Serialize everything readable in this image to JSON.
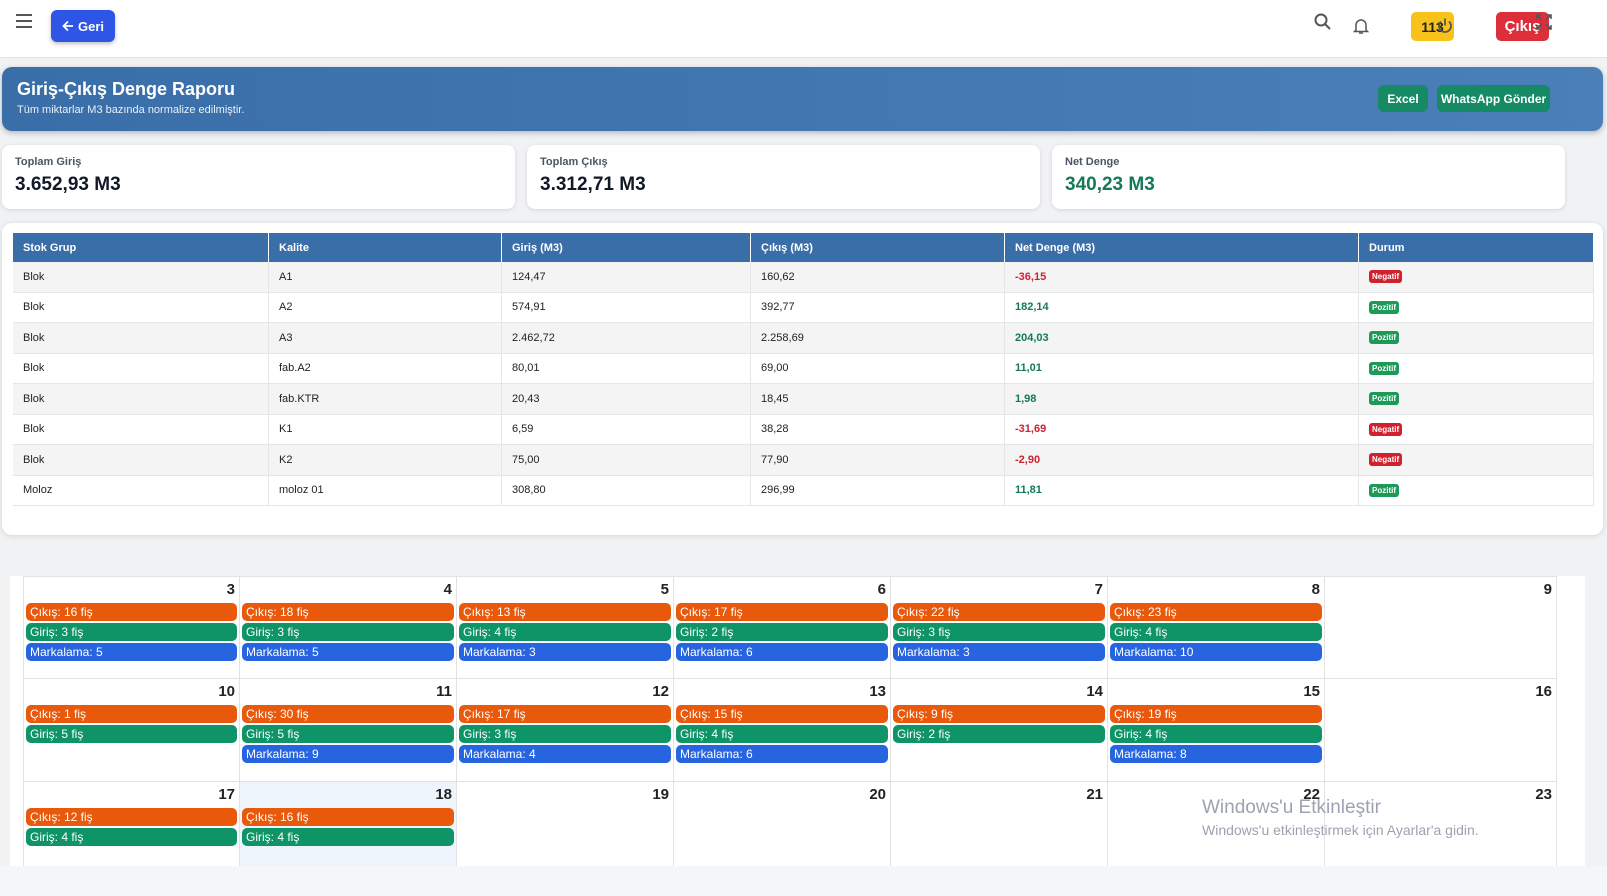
{
  "topbar": {
    "back_label": "Geri",
    "notification_count": "113",
    "logout_label": "Çıkış"
  },
  "banner": {
    "title": "Giriş-Çıkış Denge Raporu",
    "subtitle": "Tüm miktarlar M3 bazında normalize edilmiştir.",
    "excel_label": "Excel",
    "whatsapp_label": "WhatsApp Gönder"
  },
  "summary": [
    {
      "label": "Toplam Giriş",
      "value": "3.652,93 M3"
    },
    {
      "label": "Toplam Çıkış",
      "value": "3.312,71 M3"
    },
    {
      "label": "Net Denge",
      "value": "340,23 M3"
    }
  ],
  "table": {
    "headers": [
      "Stok Grup",
      "Kalite",
      "Giriş (M3)",
      "Çıkış (M3)",
      "Net Denge (M3)",
      "Durum"
    ],
    "rows": [
      {
        "group": "Blok",
        "quality": "A1",
        "in": "124,47",
        "out": "160,62",
        "net": "-36,15",
        "status": "Negatif",
        "positive": false
      },
      {
        "group": "Blok",
        "quality": "A2",
        "in": "574,91",
        "out": "392,77",
        "net": "182,14",
        "status": "Pozitif",
        "positive": true
      },
      {
        "group": "Blok",
        "quality": "A3",
        "in": "2.462,72",
        "out": "2.258,69",
        "net": "204,03",
        "status": "Pozitif",
        "positive": true
      },
      {
        "group": "Blok",
        "quality": "fab.A2",
        "in": "80,01",
        "out": "69,00",
        "net": "11,01",
        "status": "Pozitif",
        "positive": true
      },
      {
        "group": "Blok",
        "quality": "fab.KTR",
        "in": "20,43",
        "out": "18,45",
        "net": "1,98",
        "status": "Pozitif",
        "positive": true
      },
      {
        "group": "Blok",
        "quality": "K1",
        "in": "6,59",
        "out": "38,28",
        "net": "-31,69",
        "status": "Negatif",
        "positive": false
      },
      {
        "group": "Blok",
        "quality": "K2",
        "in": "75,00",
        "out": "77,90",
        "net": "-2,90",
        "status": "Negatif",
        "positive": false
      },
      {
        "group": "Moloz",
        "quality": "moloz 01",
        "in": "308,80",
        "out": "296,99",
        "net": "11,81",
        "status": "Pozitif",
        "positive": true
      }
    ]
  },
  "calendar": {
    "weeks": [
      [
        {
          "day": "3",
          "events": [
            {
              "type": "out",
              "text": "Çıkış: 16 fiş"
            },
            {
              "type": "in",
              "text": "Giriş: 3 fiş"
            },
            {
              "type": "mark",
              "text": "Markalama: 5"
            }
          ]
        },
        {
          "day": "4",
          "events": [
            {
              "type": "out",
              "text": "Çıkış: 18 fiş"
            },
            {
              "type": "in",
              "text": "Giriş: 3 fiş"
            },
            {
              "type": "mark",
              "text": "Markalama: 5"
            }
          ]
        },
        {
          "day": "5",
          "events": [
            {
              "type": "out",
              "text": "Çıkış: 13 fiş"
            },
            {
              "type": "in",
              "text": "Giriş: 4 fiş"
            },
            {
              "type": "mark",
              "text": "Markalama: 3"
            }
          ]
        },
        {
          "day": "6",
          "events": [
            {
              "type": "out",
              "text": "Çıkış: 17 fiş"
            },
            {
              "type": "in",
              "text": "Giriş: 2 fiş"
            },
            {
              "type": "mark",
              "text": "Markalama: 6"
            }
          ]
        },
        {
          "day": "7",
          "events": [
            {
              "type": "out",
              "text": "Çıkış: 22 fiş"
            },
            {
              "type": "in",
              "text": "Giriş: 3 fiş"
            },
            {
              "type": "mark",
              "text": "Markalama: 3"
            }
          ]
        },
        {
          "day": "8",
          "events": [
            {
              "type": "out",
              "text": "Çıkış: 23 fiş"
            },
            {
              "type": "in",
              "text": "Giriş: 4 fiş"
            },
            {
              "type": "mark",
              "text": "Markalama: 10"
            }
          ]
        },
        {
          "day": "9",
          "events": []
        }
      ],
      [
        {
          "day": "10",
          "events": [
            {
              "type": "out",
              "text": "Çıkış: 1 fiş"
            },
            {
              "type": "in",
              "text": "Giriş: 5 fiş"
            }
          ]
        },
        {
          "day": "11",
          "events": [
            {
              "type": "out",
              "text": "Çıkış: 30 fiş"
            },
            {
              "type": "in",
              "text": "Giriş: 5 fiş"
            },
            {
              "type": "mark",
              "text": "Markalama: 9"
            }
          ]
        },
        {
          "day": "12",
          "events": [
            {
              "type": "out",
              "text": "Çıkış: 17 fiş"
            },
            {
              "type": "in",
              "text": "Giriş: 3 fiş"
            },
            {
              "type": "mark",
              "text": "Markalama: 4"
            }
          ]
        },
        {
          "day": "13",
          "events": [
            {
              "type": "out",
              "text": "Çıkış: 15 fiş"
            },
            {
              "type": "in",
              "text": "Giriş: 4 fiş"
            },
            {
              "type": "mark",
              "text": "Markalama: 6"
            }
          ]
        },
        {
          "day": "14",
          "events": [
            {
              "type": "out",
              "text": "Çıkış: 9 fiş"
            },
            {
              "type": "in",
              "text": "Giriş: 2 fiş"
            }
          ]
        },
        {
          "day": "15",
          "events": [
            {
              "type": "out",
              "text": "Çıkış: 19 fiş"
            },
            {
              "type": "in",
              "text": "Giriş: 4 fiş"
            },
            {
              "type": "mark",
              "text": "Markalama: 8"
            }
          ]
        },
        {
          "day": "16",
          "events": []
        }
      ],
      [
        {
          "day": "17",
          "events": [
            {
              "type": "out",
              "text": "Çıkış: 12 fiş"
            },
            {
              "type": "in",
              "text": "Giriş: 4 fiş"
            }
          ]
        },
        {
          "day": "18",
          "today": true,
          "events": [
            {
              "type": "out",
              "text": "Çıkış: 16 fiş"
            },
            {
              "type": "in",
              "text": "Giriş: 4 fiş"
            }
          ]
        },
        {
          "day": "19",
          "events": []
        },
        {
          "day": "20",
          "events": []
        },
        {
          "day": "21",
          "events": []
        },
        {
          "day": "22",
          "events": []
        },
        {
          "day": "23",
          "events": []
        }
      ]
    ]
  },
  "watermark": {
    "line1": "Windows'u Etkinleştir",
    "line2": "Windows'u etkinleştirmek için Ayarlar'a gidin."
  }
}
